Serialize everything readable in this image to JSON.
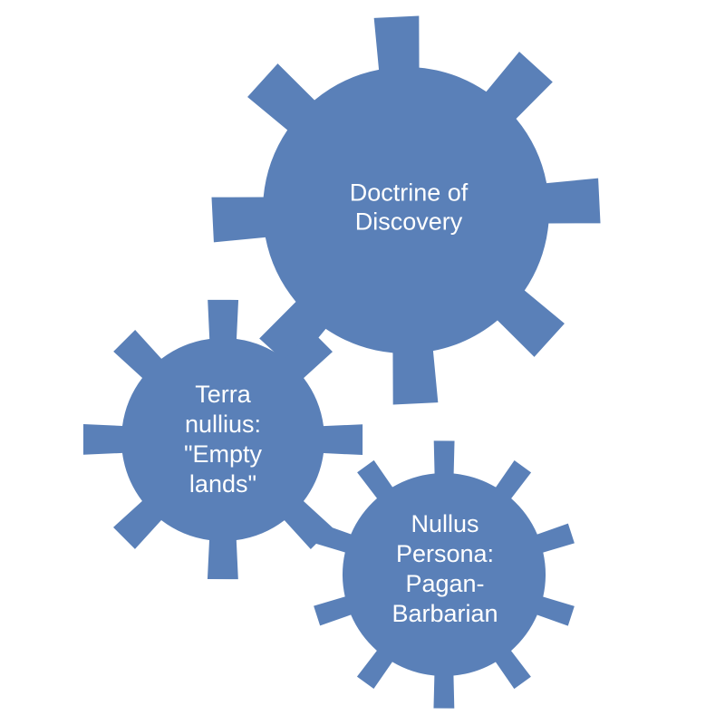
{
  "diagram": {
    "gear_color": "#5a80b8",
    "text_color": "#ffffff",
    "gears": [
      {
        "id": "doctrine",
        "lines": [
          "Doctrine of",
          "Discovery"
        ]
      },
      {
        "id": "terra",
        "lines": [
          "Terra",
          "nullius:",
          "\"Empty",
          "lands\""
        ]
      },
      {
        "id": "nullus",
        "lines": [
          "Nullus",
          "Persona:",
          "Pagan-",
          "Barbarian"
        ]
      }
    ]
  }
}
